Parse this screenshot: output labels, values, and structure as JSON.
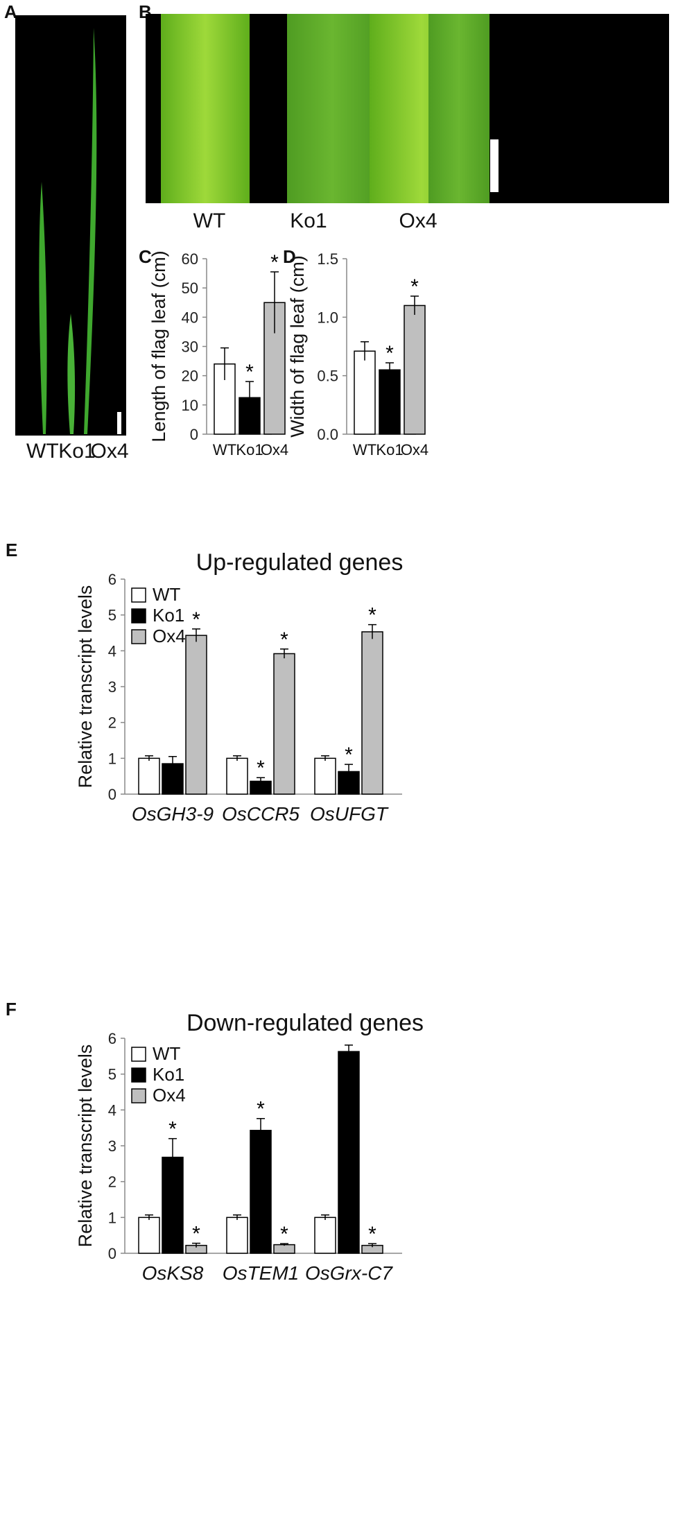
{
  "panels": {
    "a": {
      "letter": "A",
      "labels": [
        "WT",
        "Ko1",
        "Ox4"
      ]
    },
    "b": {
      "letter": "B",
      "labels": [
        "WT",
        "Ko1",
        "Ox4"
      ]
    },
    "c": {
      "letter": "C"
    },
    "d": {
      "letter": "D"
    },
    "e": {
      "letter": "E"
    },
    "f": {
      "letter": "F"
    }
  },
  "legend": {
    "items": [
      "WT",
      "Ko1",
      "Ox4"
    ]
  },
  "colors": {
    "wt": "#ffffff",
    "ko1": "#000000",
    "ox4": "#bfbfbf",
    "leaf": "#3fa82e",
    "photo_bg": "#000000"
  },
  "chart_data": [
    {
      "id": "C",
      "type": "bar",
      "categories": [
        "WT",
        "Ko1",
        "Ox4"
      ],
      "values": [
        24,
        12.5,
        45
      ],
      "errors": [
        5.5,
        5.5,
        10.5
      ],
      "significant": [
        false,
        true,
        true
      ],
      "ylabel": "Length of flag leaf (cm)",
      "ylim": [
        0,
        60
      ],
      "yticks": [
        "0",
        "10",
        "20",
        "30",
        "40",
        "50",
        "60"
      ],
      "grid": false
    },
    {
      "id": "D",
      "type": "bar",
      "categories": [
        "WT",
        "Ko1",
        "Ox4"
      ],
      "values": [
        0.71,
        0.55,
        1.1
      ],
      "errors": [
        0.08,
        0.06,
        0.08
      ],
      "significant": [
        false,
        true,
        true
      ],
      "ylabel": "Width of flag leaf (cm)",
      "ylim": [
        0,
        1.5
      ],
      "yticks": [
        "0.0",
        "0.5",
        "1.0",
        "1.5"
      ],
      "grid": false
    },
    {
      "id": "E",
      "type": "bar",
      "title": "Up-regulated genes",
      "categories": [
        "OsGH3-9",
        "OsCCR5",
        "OsUFGT"
      ],
      "series": [
        {
          "name": "WT",
          "values": [
            1.0,
            1.0,
            1.0
          ],
          "errors": [
            0.07,
            0.07,
            0.07
          ],
          "significant": [
            false,
            false,
            false
          ]
        },
        {
          "name": "Ko1",
          "values": [
            0.85,
            0.36,
            0.63
          ],
          "errors": [
            0.2,
            0.1,
            0.2
          ],
          "significant": [
            false,
            true,
            true
          ]
        },
        {
          "name": "Ox4",
          "values": [
            4.43,
            3.92,
            4.53
          ],
          "errors": [
            0.18,
            0.13,
            0.2
          ],
          "significant": [
            true,
            true,
            true
          ]
        }
      ],
      "ylabel": "Relative transcript levels",
      "ylim": [
        0,
        6
      ],
      "yticks": [
        "0",
        "1",
        "2",
        "3",
        "4",
        "5",
        "6"
      ],
      "legend": "top-left",
      "grid": false
    },
    {
      "id": "F",
      "type": "bar",
      "title": "Down-regulated genes",
      "categories": [
        "OsKS8",
        "OsTEM1",
        "OsGrx-C7"
      ],
      "series": [
        {
          "name": "WT",
          "values": [
            1.0,
            1.0,
            1.0
          ],
          "errors": [
            0.07,
            0.07,
            0.07
          ],
          "significant": [
            false,
            false,
            false
          ]
        },
        {
          "name": "Ko1",
          "values": [
            2.68,
            3.43,
            5.63
          ],
          "errors": [
            0.52,
            0.33,
            0.18
          ],
          "significant": [
            true,
            true,
            false
          ]
        },
        {
          "name": "Ox4",
          "values": [
            0.22,
            0.24,
            0.22
          ],
          "errors": [
            0.06,
            0.03,
            0.05
          ],
          "significant": [
            true,
            true,
            true
          ]
        }
      ],
      "ylabel": "Relative transcript levels",
      "ylim": [
        0,
        6
      ],
      "yticks": [
        "0",
        "1",
        "2",
        "3",
        "4",
        "5",
        "6"
      ],
      "legend": "top-left",
      "grid": false
    }
  ]
}
